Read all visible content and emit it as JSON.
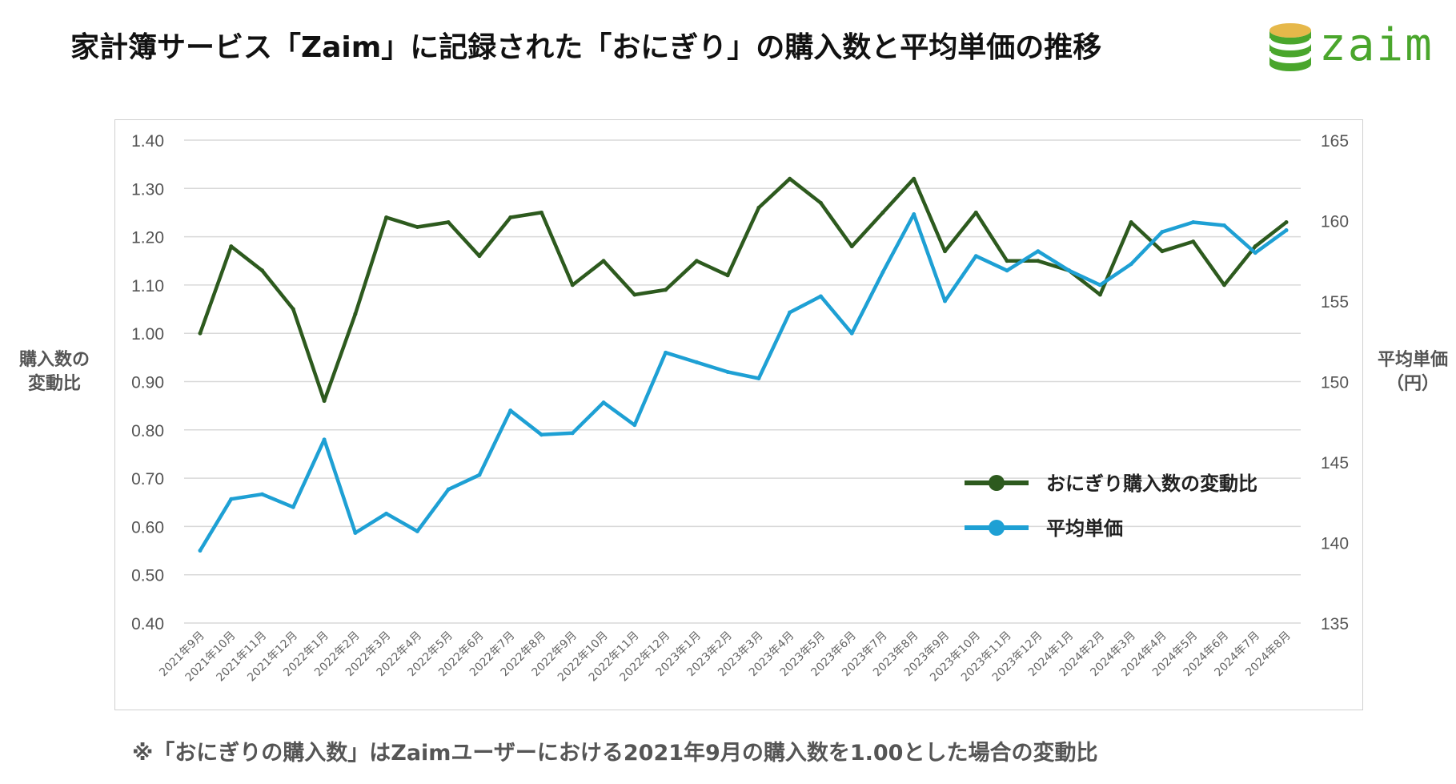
{
  "title": "家計簿サービス「Zaim」に記録された「おにぎり」の購入数と平均単価の推移",
  "logo": {
    "text": "zaim",
    "icon": "coin-stack-icon",
    "color": "#4aa62c"
  },
  "left_axis_title": [
    "購入数の",
    "変動比"
  ],
  "right_axis_title": [
    "平均単価",
    "（円）"
  ],
  "footnote": "※「おにぎりの購入数」はZaimユーザーにおける2021年9月の購入数を1.00とした場合の変動比",
  "chart_data": {
    "type": "line",
    "categories": [
      "2021年9月",
      "2021年10月",
      "2021年11月",
      "2021年12月",
      "2022年1月",
      "2022年2月",
      "2022年3月",
      "2022年4月",
      "2022年5月",
      "2022年6月",
      "2022年7月",
      "2022年8月",
      "2022年9月",
      "2022年10月",
      "2022年11月",
      "2022年12月",
      "2023年1月",
      "2023年2月",
      "2023年3月",
      "2023年4月",
      "2023年5月",
      "2023年6月",
      "2023年7月",
      "2023年8月",
      "2023年9月",
      "2023年10月",
      "2023年11月",
      "2023年12月",
      "2024年1月",
      "2024年2月",
      "2024年3月",
      "2024年4月",
      "2024年5月",
      "2024年6月",
      "2024年7月",
      "2024年8月"
    ],
    "y_left": {
      "min": 0.4,
      "max": 1.4,
      "step": 0.1,
      "ticks": [
        "0.40",
        "0.50",
        "0.60",
        "0.70",
        "0.80",
        "0.90",
        "1.00",
        "1.10",
        "1.20",
        "1.30",
        "1.40"
      ]
    },
    "y_right": {
      "min": 135,
      "max": 165,
      "step": 5,
      "ticks": [
        "135",
        "140",
        "145",
        "150",
        "155",
        "160",
        "165"
      ]
    },
    "grid": true,
    "legend_position": "right-middle",
    "series": [
      {
        "name": "おにぎり購入数の変動比",
        "axis": "left",
        "color": "#2d5a1e",
        "values": [
          1.0,
          1.18,
          1.13,
          1.05,
          0.86,
          1.04,
          1.24,
          1.22,
          1.23,
          1.16,
          1.24,
          1.25,
          1.1,
          1.15,
          1.08,
          1.09,
          1.15,
          1.12,
          1.26,
          1.32,
          1.27,
          1.18,
          1.25,
          1.32,
          1.17,
          1.25,
          1.15,
          1.15,
          1.13,
          1.08,
          1.23,
          1.17,
          1.19,
          1.1,
          1.18,
          1.23
        ]
      },
      {
        "name": "平均単価",
        "axis": "right",
        "color": "#1ea0d4",
        "values": [
          139.5,
          142.7,
          143.0,
          142.2,
          146.4,
          140.6,
          141.8,
          140.7,
          143.3,
          144.2,
          148.2,
          146.7,
          146.8,
          148.7,
          147.3,
          151.8,
          151.2,
          150.6,
          150.2,
          154.3,
          155.3,
          153.0,
          156.8,
          160.4,
          155.0,
          157.8,
          156.9,
          158.1,
          156.9,
          156.0,
          157.3,
          159.3,
          159.9,
          159.7,
          158.0,
          159.4
        ]
      }
    ]
  }
}
